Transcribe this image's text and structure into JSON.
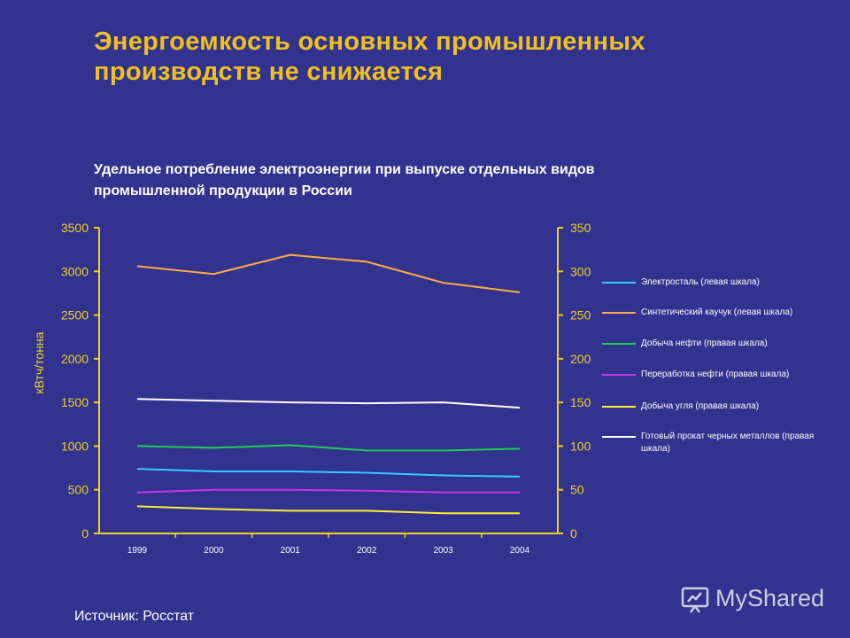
{
  "header": {
    "title_line1": "Энергоемкость основных промышленных",
    "title_line2": "производств не снижается"
  },
  "subtitle": {
    "line1": "Удельное потребление электроэнергии при выпуске отдельных видов",
    "line2": "промышленной продукции в России"
  },
  "footer": {
    "source": "Источник: Росстат",
    "watermark": "MyShared"
  },
  "colors": {
    "background": "#31338f",
    "title": "#f0c020",
    "axis": "#f0d020"
  },
  "chart_data": {
    "type": "line",
    "title": "",
    "xlabel": "",
    "ylabel": "кВтч/тонна",
    "categories": [
      "1999",
      "2000",
      "2001",
      "2002",
      "2003",
      "2004"
    ],
    "ylim_left": [
      0,
      3500
    ],
    "yticks_left": [
      0,
      500,
      1000,
      1500,
      2000,
      2500,
      3000,
      3500
    ],
    "ylim_right": [
      0,
      350
    ],
    "yticks_right": [
      0,
      50,
      100,
      150,
      200,
      250,
      300,
      350
    ],
    "grid": false,
    "legend_position": "right",
    "series": [
      {
        "name": "Электросталь (левая шкала)",
        "axis": "left",
        "color": "#33ccff",
        "values": [
          740,
          710,
          710,
          695,
          665,
          650
        ]
      },
      {
        "name": "Синтетический каучук (левая шкала)",
        "axis": "left",
        "color": "#ffaa44",
        "values": [
          3060,
          2970,
          3190,
          3110,
          2870,
          2760
        ]
      },
      {
        "name": "Добыча нефти (правая шкала)",
        "axis": "right",
        "color": "#22cc55",
        "values": [
          100,
          98,
          101,
          95,
          95,
          97
        ]
      },
      {
        "name": "Переработка нефти (правая шкала)",
        "axis": "right",
        "color": "#cc33ee",
        "values": [
          47,
          50,
          50,
          49,
          47,
          47
        ]
      },
      {
        "name": "Добыча угля (правая шкала)",
        "axis": "right",
        "color": "#ffee33",
        "values": [
          31,
          28,
          26,
          26,
          23,
          23
        ]
      },
      {
        "name": "Готовый прокат черных металлов (правая шкала)",
        "axis": "right",
        "color": "#ffffff",
        "values": [
          154,
          152,
          150,
          149,
          150,
          144
        ]
      }
    ]
  }
}
